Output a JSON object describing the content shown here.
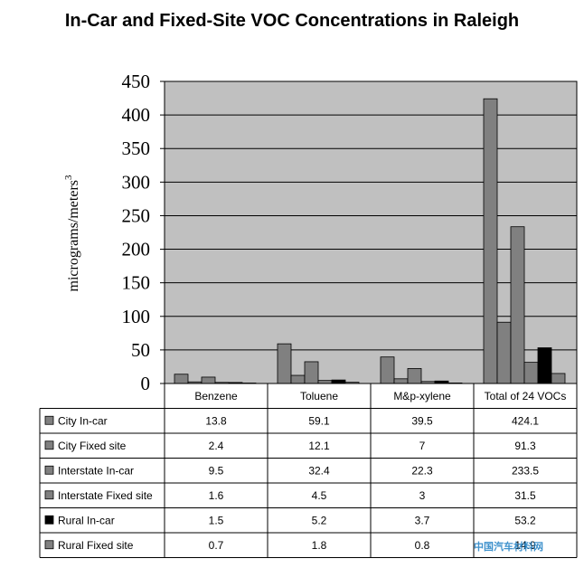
{
  "chart_data": {
    "type": "bar",
    "title": "In-Car and Fixed-Site VOC Concentrations in Raleigh",
    "ylabel": "micrograms/meters",
    "ylabel_superscript": "3",
    "xlabel": "",
    "ylim": [
      0,
      450
    ],
    "yticks": [
      0,
      50,
      100,
      150,
      200,
      250,
      300,
      350,
      400,
      450
    ],
    "grid": true,
    "categories": [
      "Benzene",
      "Toluene",
      "M&p-xylene",
      "Total of 24 VOCs"
    ],
    "series": [
      {
        "name": "City In-car",
        "color": "#808080",
        "values": [
          13.8,
          59.1,
          39.5,
          424.1
        ],
        "labels": [
          "13.8",
          "59.1",
          "39.5",
          "424.1"
        ]
      },
      {
        "name": "City Fixed site",
        "color": "#808080",
        "values": [
          2.4,
          12.1,
          7,
          91.3
        ],
        "labels": [
          "2.4",
          "12.1",
          "7",
          "91.3"
        ]
      },
      {
        "name": "Interstate In-car",
        "color": "#808080",
        "values": [
          9.5,
          32.4,
          22.3,
          233.5
        ],
        "labels": [
          "9.5",
          "32.4",
          "22.3",
          "233.5"
        ]
      },
      {
        "name": "Interstate Fixed site",
        "color": "#808080",
        "values": [
          1.6,
          4.5,
          3,
          31.5
        ],
        "labels": [
          "1.6",
          "4.5",
          "3",
          "31.5"
        ]
      },
      {
        "name": "Rural In-car",
        "color": "#000000",
        "values": [
          1.5,
          5.2,
          3.7,
          53.2
        ],
        "labels": [
          "1.5",
          "5.2",
          "3.7",
          "53.2"
        ]
      },
      {
        "name": "Rural Fixed site",
        "color": "#808080",
        "values": [
          0.7,
          1.8,
          0.8,
          14.9
        ],
        "labels": [
          "0.7",
          "1.8",
          "0.8",
          "14.9"
        ]
      }
    ]
  },
  "watermark": "中国汽车材料网"
}
